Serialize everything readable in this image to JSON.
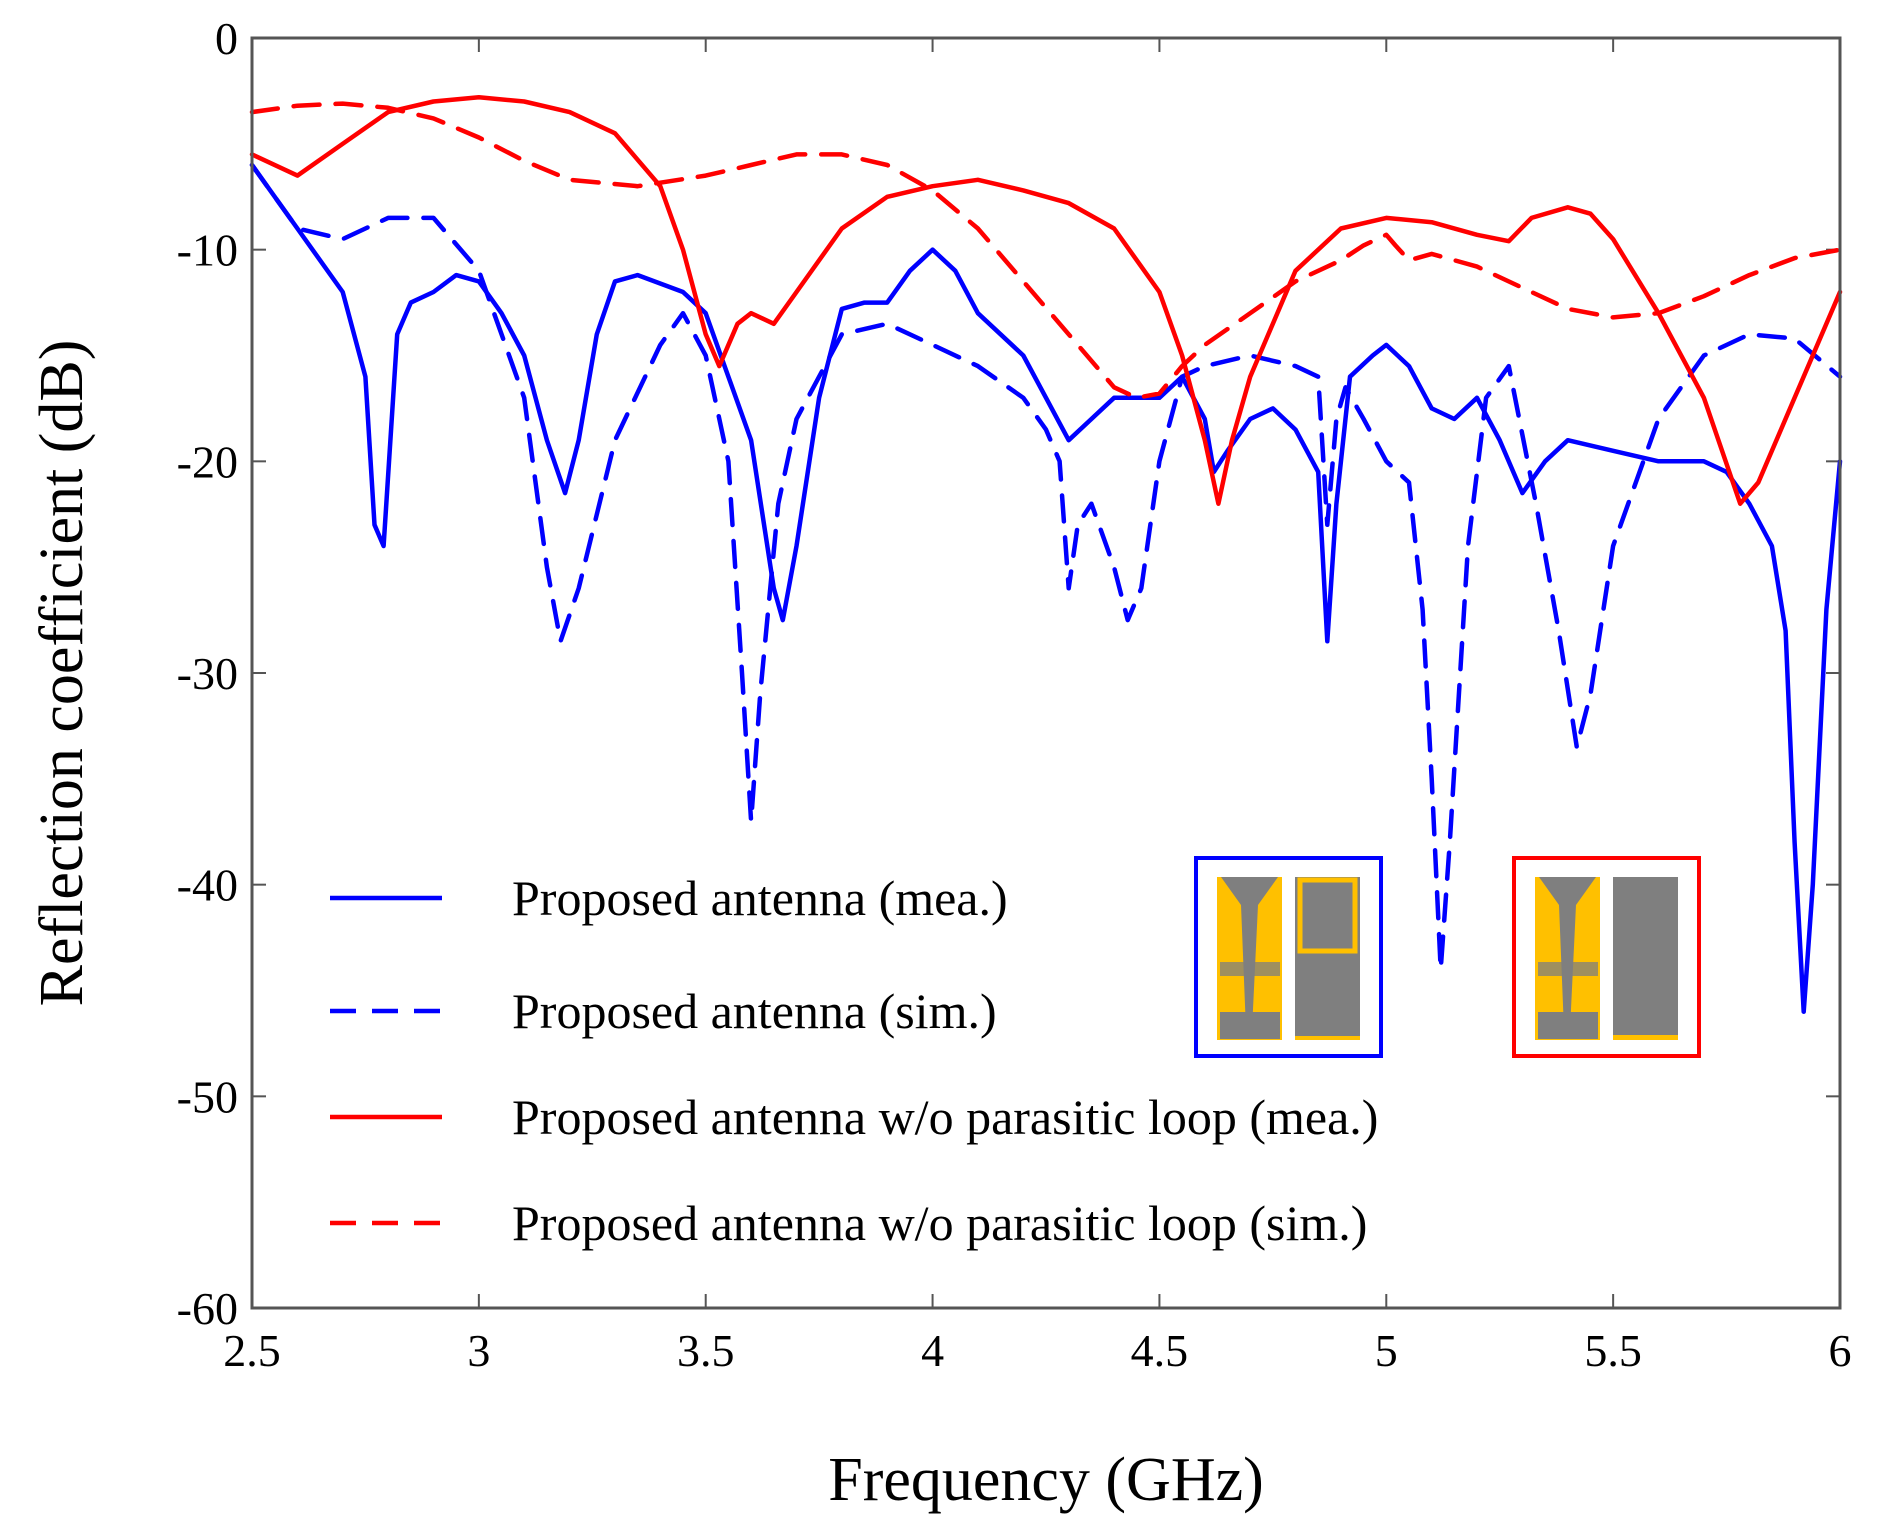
{
  "chart_data": {
    "type": "line",
    "title": "",
    "xlabel": "Frequency (GHz)",
    "ylabel": "Reflection coefficient (dB)",
    "xlim": [
      2.5,
      6
    ],
    "ylim": [
      -60,
      0
    ],
    "xticks": [
      "2.5",
      "3",
      "3.5",
      "4",
      "4.5",
      "5",
      "5.5",
      "6"
    ],
    "yticks": [
      "0",
      "-10",
      "-20",
      "-30",
      "-40",
      "-50",
      "-60"
    ],
    "grid": false,
    "legend_position": "lower-left",
    "series": [
      {
        "name": "Proposed antenna (mea.)",
        "color": "#0000ff",
        "dash": "solid",
        "points": [
          [
            2.5,
            -6
          ],
          [
            2.6,
            -9
          ],
          [
            2.7,
            -12
          ],
          [
            2.75,
            -16
          ],
          [
            2.77,
            -23
          ],
          [
            2.79,
            -24
          ],
          [
            2.82,
            -14
          ],
          [
            2.85,
            -12.5
          ],
          [
            2.9,
            -12
          ],
          [
            2.95,
            -11.2
          ],
          [
            3,
            -11.5
          ],
          [
            3.05,
            -13
          ],
          [
            3.1,
            -15
          ],
          [
            3.15,
            -19
          ],
          [
            3.19,
            -21.5
          ],
          [
            3.22,
            -19
          ],
          [
            3.26,
            -14
          ],
          [
            3.3,
            -11.5
          ],
          [
            3.35,
            -11.2
          ],
          [
            3.45,
            -12
          ],
          [
            3.5,
            -13
          ],
          [
            3.55,
            -16
          ],
          [
            3.6,
            -19
          ],
          [
            3.65,
            -26
          ],
          [
            3.67,
            -27.5
          ],
          [
            3.7,
            -24
          ],
          [
            3.75,
            -17
          ],
          [
            3.8,
            -12.8
          ],
          [
            3.85,
            -12.5
          ],
          [
            3.9,
            -12.5
          ],
          [
            3.95,
            -11
          ],
          [
            4,
            -10
          ],
          [
            4.05,
            -11
          ],
          [
            4.1,
            -13
          ],
          [
            4.2,
            -15
          ],
          [
            4.25,
            -17
          ],
          [
            4.3,
            -19
          ],
          [
            4.35,
            -18
          ],
          [
            4.4,
            -17
          ],
          [
            4.5,
            -17
          ],
          [
            4.55,
            -16
          ],
          [
            4.6,
            -18
          ],
          [
            4.62,
            -20.5
          ],
          [
            4.65,
            -19.5
          ],
          [
            4.7,
            -18
          ],
          [
            4.75,
            -17.5
          ],
          [
            4.8,
            -18.5
          ],
          [
            4.85,
            -20.5
          ],
          [
            4.87,
            -28.5
          ],
          [
            4.89,
            -22
          ],
          [
            4.92,
            -16
          ],
          [
            4.97,
            -15
          ],
          [
            5,
            -14.5
          ],
          [
            5.05,
            -15.5
          ],
          [
            5.1,
            -17.5
          ],
          [
            5.15,
            -18
          ],
          [
            5.2,
            -17
          ],
          [
            5.25,
            -19
          ],
          [
            5.3,
            -21.5
          ],
          [
            5.35,
            -20
          ],
          [
            5.4,
            -19
          ],
          [
            5.5,
            -19.5
          ],
          [
            5.6,
            -20
          ],
          [
            5.7,
            -20
          ],
          [
            5.75,
            -20.5
          ],
          [
            5.8,
            -22
          ],
          [
            5.85,
            -24
          ],
          [
            5.88,
            -28
          ],
          [
            5.9,
            -38
          ],
          [
            5.92,
            -46
          ],
          [
            5.94,
            -40
          ],
          [
            5.97,
            -27
          ],
          [
            6,
            -20
          ]
        ]
      },
      {
        "name": "Proposed antenna (sim.)",
        "color": "#0000ff",
        "dash": "dashed",
        "points": [
          [
            2.5,
            -6
          ],
          [
            2.6,
            -9
          ],
          [
            2.7,
            -9.5
          ],
          [
            2.8,
            -8.5
          ],
          [
            2.9,
            -8.5
          ],
          [
            3,
            -11
          ],
          [
            3.1,
            -17
          ],
          [
            3.15,
            -25
          ],
          [
            3.18,
            -28.5
          ],
          [
            3.22,
            -26
          ],
          [
            3.3,
            -19
          ],
          [
            3.4,
            -14.5
          ],
          [
            3.45,
            -13
          ],
          [
            3.5,
            -15
          ],
          [
            3.55,
            -20
          ],
          [
            3.58,
            -30
          ],
          [
            3.6,
            -37
          ],
          [
            3.62,
            -31
          ],
          [
            3.66,
            -22
          ],
          [
            3.7,
            -18
          ],
          [
            3.75,
            -16
          ],
          [
            3.8,
            -14
          ],
          [
            3.9,
            -13.5
          ],
          [
            4,
            -14.5
          ],
          [
            4.1,
            -15.5
          ],
          [
            4.2,
            -17
          ],
          [
            4.25,
            -18.5
          ],
          [
            4.28,
            -20
          ],
          [
            4.3,
            -26
          ],
          [
            4.32,
            -23
          ],
          [
            4.35,
            -22
          ],
          [
            4.4,
            -25
          ],
          [
            4.43,
            -27.5
          ],
          [
            4.46,
            -26
          ],
          [
            4.5,
            -20
          ],
          [
            4.55,
            -16
          ],
          [
            4.6,
            -15.5
          ],
          [
            4.7,
            -15
          ],
          [
            4.8,
            -15.5
          ],
          [
            4.85,
            -16
          ],
          [
            4.87,
            -23
          ],
          [
            4.89,
            -18
          ],
          [
            4.91,
            -16.5
          ],
          [
            4.95,
            -18
          ],
          [
            5,
            -20
          ],
          [
            5.05,
            -21
          ],
          [
            5.08,
            -27
          ],
          [
            5.1,
            -35
          ],
          [
            5.12,
            -44
          ],
          [
            5.14,
            -38
          ],
          [
            5.18,
            -24
          ],
          [
            5.22,
            -17
          ],
          [
            5.27,
            -15.5
          ],
          [
            5.33,
            -22
          ],
          [
            5.38,
            -28
          ],
          [
            5.42,
            -33.5
          ],
          [
            5.45,
            -31
          ],
          [
            5.5,
            -24
          ],
          [
            5.6,
            -18
          ],
          [
            5.7,
            -15
          ],
          [
            5.8,
            -14
          ],
          [
            5.9,
            -14.2
          ],
          [
            6,
            -16
          ]
        ]
      },
      {
        "name": "Proposed antenna w/o parasitic loop (mea.)",
        "color": "#ff0000",
        "dash": "solid",
        "points": [
          [
            2.5,
            -5.5
          ],
          [
            2.6,
            -6.5
          ],
          [
            2.7,
            -5
          ],
          [
            2.8,
            -3.5
          ],
          [
            2.9,
            -3
          ],
          [
            3,
            -2.8
          ],
          [
            3.1,
            -3
          ],
          [
            3.2,
            -3.5
          ],
          [
            3.3,
            -4.5
          ],
          [
            3.4,
            -7
          ],
          [
            3.45,
            -10
          ],
          [
            3.5,
            -14
          ],
          [
            3.53,
            -15.5
          ],
          [
            3.57,
            -13.5
          ],
          [
            3.6,
            -13
          ],
          [
            3.65,
            -13.5
          ],
          [
            3.7,
            -12
          ],
          [
            3.8,
            -9
          ],
          [
            3.9,
            -7.5
          ],
          [
            4,
            -7
          ],
          [
            4.1,
            -6.7
          ],
          [
            4.2,
            -7.2
          ],
          [
            4.3,
            -7.8
          ],
          [
            4.4,
            -9
          ],
          [
            4.5,
            -12
          ],
          [
            4.55,
            -15
          ],
          [
            4.6,
            -19
          ],
          [
            4.63,
            -22
          ],
          [
            4.66,
            -19
          ],
          [
            4.7,
            -16
          ],
          [
            4.8,
            -11
          ],
          [
            4.9,
            -9
          ],
          [
            5,
            -8.5
          ],
          [
            5.1,
            -8.7
          ],
          [
            5.2,
            -9.3
          ],
          [
            5.27,
            -9.6
          ],
          [
            5.32,
            -8.5
          ],
          [
            5.4,
            -8
          ],
          [
            5.45,
            -8.3
          ],
          [
            5.5,
            -9.5
          ],
          [
            5.6,
            -13
          ],
          [
            5.7,
            -17
          ],
          [
            5.78,
            -22
          ],
          [
            5.82,
            -21
          ],
          [
            5.9,
            -17
          ],
          [
            6,
            -12
          ]
        ]
      },
      {
        "name": "Proposed antenna w/o parasitic loop (sim.)",
        "color": "#ff0000",
        "dash": "dashed",
        "points": [
          [
            2.5,
            -3.5
          ],
          [
            2.6,
            -3.2
          ],
          [
            2.7,
            -3.1
          ],
          [
            2.8,
            -3.3
          ],
          [
            2.9,
            -3.8
          ],
          [
            3,
            -4.7
          ],
          [
            3.1,
            -5.8
          ],
          [
            3.2,
            -6.7
          ],
          [
            3.35,
            -7
          ],
          [
            3.5,
            -6.5
          ],
          [
            3.6,
            -6
          ],
          [
            3.7,
            -5.5
          ],
          [
            3.8,
            -5.5
          ],
          [
            3.9,
            -6
          ],
          [
            4,
            -7.2
          ],
          [
            4.1,
            -9
          ],
          [
            4.2,
            -11.5
          ],
          [
            4.3,
            -14
          ],
          [
            4.4,
            -16.5
          ],
          [
            4.45,
            -17
          ],
          [
            4.5,
            -16.8
          ],
          [
            4.55,
            -15.5
          ],
          [
            4.6,
            -14.5
          ],
          [
            4.7,
            -13
          ],
          [
            4.8,
            -11.5
          ],
          [
            4.9,
            -10.5
          ],
          [
            4.95,
            -9.8
          ],
          [
            5,
            -9.3
          ],
          [
            5.02,
            -9.8
          ],
          [
            5.05,
            -10.5
          ],
          [
            5.1,
            -10.2
          ],
          [
            5.2,
            -10.8
          ],
          [
            5.3,
            -11.8
          ],
          [
            5.4,
            -12.8
          ],
          [
            5.5,
            -13.2
          ],
          [
            5.6,
            -13
          ],
          [
            5.7,
            -12.2
          ],
          [
            5.8,
            -11.2
          ],
          [
            5.9,
            -10.4
          ],
          [
            6,
            -10
          ]
        ]
      }
    ]
  }
}
